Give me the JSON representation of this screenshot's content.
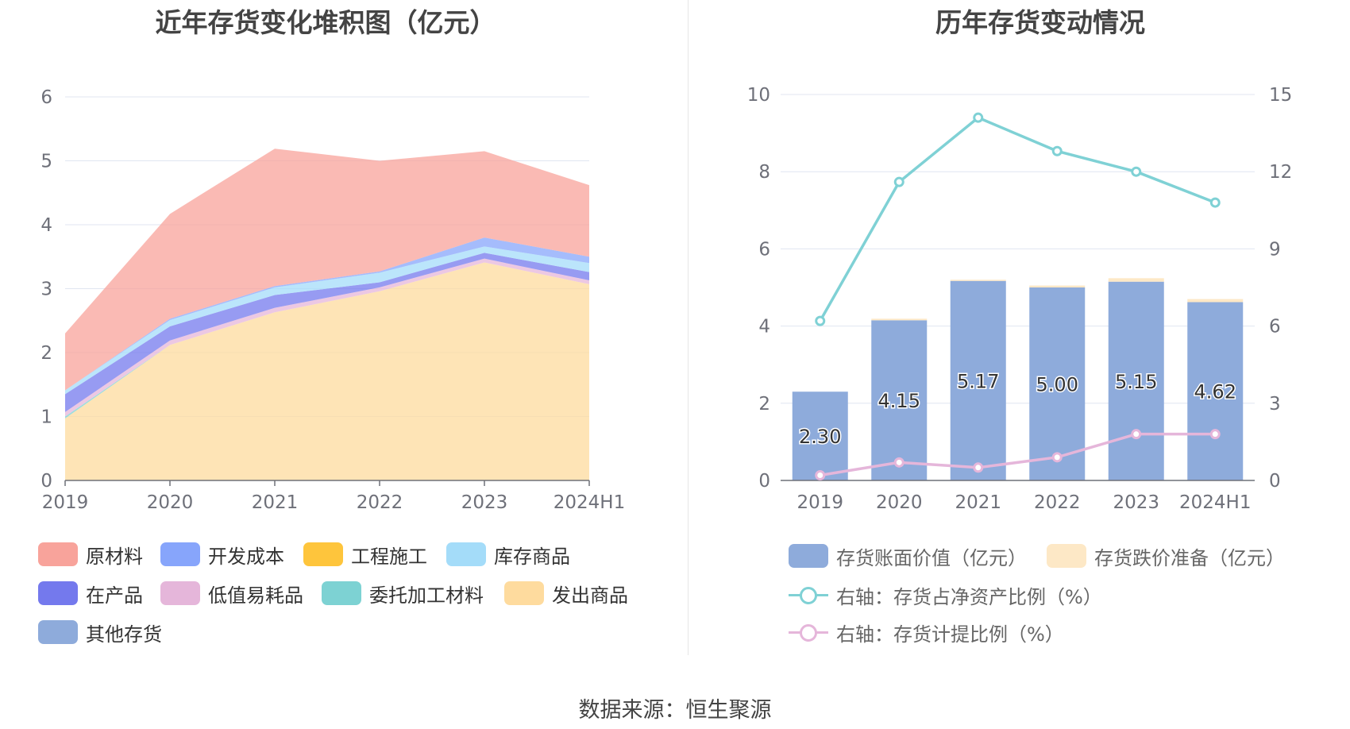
{
  "left_chart": {
    "title": "近年存货变化堆积图（亿元）",
    "legend": [
      {
        "name": "原材料",
        "color": "#f8a39b"
      },
      {
        "name": "开发成本",
        "color": "#87a5fb"
      },
      {
        "name": "工程施工",
        "color": "#fec53c"
      },
      {
        "name": "库存商品",
        "color": "#a4dcf9"
      },
      {
        "name": "在产品",
        "color": "#7479ed"
      },
      {
        "name": "低值易耗品",
        "color": "#e5b6da"
      },
      {
        "name": "委托加工材料",
        "color": "#7dd2d3"
      },
      {
        "name": "发出商品",
        "color": "#fedb9e"
      },
      {
        "name": "其他存货",
        "color": "#8eabdb"
      }
    ]
  },
  "right_chart": {
    "title": "历年存货变动情况",
    "legend": [
      {
        "name": "存货账面价值（亿元）",
        "color": "#8eabdb",
        "kind": "bar"
      },
      {
        "name": "存货跌价准备（亿元）",
        "color": "#fde8c6",
        "kind": "bar"
      },
      {
        "name": "右轴：存货占净资产比例（%）",
        "color": "#7fd1d5",
        "kind": "line"
      },
      {
        "name": "右轴：存货计提比例（%）",
        "color": "#e5b6da",
        "kind": "line"
      }
    ]
  },
  "source": "数据来源：恒生聚源",
  "chart_data": [
    {
      "type": "area",
      "stacked": true,
      "title": "近年存货变化堆积图（亿元）",
      "categories": [
        "2019",
        "2020",
        "2021",
        "2022",
        "2023",
        "2024H1"
      ],
      "ylim": [
        0,
        6
      ],
      "yticks": [
        0,
        1,
        2,
        3,
        4,
        5,
        6
      ],
      "grid": true,
      "legend_position": "bottom",
      "series": [
        {
          "name": "发出商品",
          "values": [
            0.97,
            2.12,
            2.63,
            2.96,
            3.41,
            3.07
          ],
          "color": "#fedb9e"
        },
        {
          "name": "委托加工材料",
          "values": [
            0.03,
            0.0,
            0.0,
            0.0,
            0.0,
            0.0
          ],
          "color": "#7dd2d3"
        },
        {
          "name": "低值易耗品",
          "values": [
            0.07,
            0.07,
            0.07,
            0.06,
            0.06,
            0.06
          ],
          "color": "#e5b6da"
        },
        {
          "name": "在产品",
          "values": [
            0.28,
            0.22,
            0.2,
            0.08,
            0.09,
            0.13
          ],
          "color": "#7479ed"
        },
        {
          "name": "库存商品",
          "values": [
            0.06,
            0.1,
            0.12,
            0.15,
            0.1,
            0.14
          ],
          "color": "#a4dcf9"
        },
        {
          "name": "工程施工",
          "values": [
            0.0,
            0.0,
            0.0,
            0.0,
            0.0,
            0.0
          ],
          "color": "#fec53c"
        },
        {
          "name": "开发成本",
          "values": [
            0.0,
            0.02,
            0.02,
            0.02,
            0.14,
            0.1
          ],
          "color": "#87a5fb"
        },
        {
          "name": "原材料",
          "values": [
            0.89,
            1.64,
            2.15,
            1.73,
            1.35,
            1.12
          ],
          "color": "#f8a39b"
        },
        {
          "name": "其他存货",
          "values": [
            0.0,
            0.0,
            0.0,
            0.0,
            0.0,
            0.0
          ],
          "color": "#8eabdb"
        }
      ]
    },
    {
      "type": "bar",
      "title": "历年存货变动情况",
      "categories": [
        "2019",
        "2020",
        "2021",
        "2022",
        "2023",
        "2024H1"
      ],
      "ylim": [
        0,
        10
      ],
      "yticks": [
        0,
        2,
        4,
        6,
        8,
        10
      ],
      "y2lim": [
        0,
        15
      ],
      "y2ticks": [
        0,
        3,
        6,
        9,
        12,
        15
      ],
      "grid": true,
      "legend_position": "bottom",
      "series": [
        {
          "name": "存货账面价值（亿元）",
          "kind": "bar",
          "stack": "a",
          "values": [
            2.3,
            4.15,
            5.17,
            5.0,
            5.15,
            4.62
          ],
          "labels": [
            "2.30",
            "4.15",
            "5.17",
            "5.00",
            "5.15",
            "4.62"
          ],
          "color": "#8eabdb"
        },
        {
          "name": "存货跌价准备（亿元）",
          "kind": "bar",
          "stack": "a",
          "values": [
            0.0,
            0.04,
            0.03,
            0.05,
            0.09,
            0.08
          ],
          "color": "#fde8c6"
        },
        {
          "name": "右轴：存货占净资产比例（%）",
          "kind": "line",
          "axis": "right",
          "values": [
            6.2,
            11.6,
            14.1,
            12.8,
            12.0,
            10.8
          ],
          "color": "#7fd1d5"
        },
        {
          "name": "右轴：存货计提比例（%）",
          "kind": "line",
          "axis": "right",
          "values": [
            0.2,
            0.7,
            0.5,
            0.9,
            1.8,
            1.8
          ],
          "color": "#e5b6da"
        }
      ]
    }
  ]
}
